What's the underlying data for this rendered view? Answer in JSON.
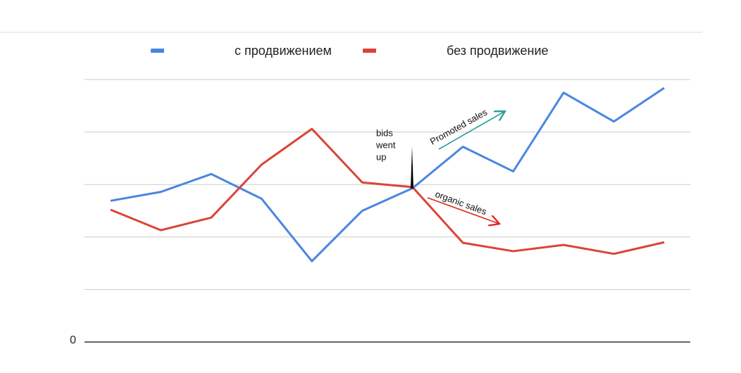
{
  "chart_data": {
    "type": "line",
    "categories": [
      null,
      null,
      null,
      null,
      null,
      null,
      null,
      null,
      null,
      null,
      null,
      null
    ],
    "series": [
      {
        "name": "с продвижением",
        "color": "#4a86e0",
        "values": [
          2.69,
          2.86,
          3.2,
          2.73,
          1.54,
          2.5,
          2.93,
          3.72,
          3.25,
          4.75,
          4.2,
          4.84
        ]
      },
      {
        "name": "без продвижение",
        "color": "#db4437",
        "values": [
          2.52,
          2.13,
          2.37,
          3.38,
          4.06,
          3.04,
          2.95,
          1.89,
          1.73,
          1.85,
          1.68,
          1.9
        ]
      }
    ],
    "ylim": [
      0,
      5
    ],
    "yticks": [
      0
    ],
    "ygrid": [
      0,
      1,
      2,
      3,
      4,
      5
    ],
    "grid": true,
    "legend": "top",
    "annotations": [
      {
        "lines": [
          "bids",
          "went",
          "up"
        ]
      },
      {
        "text": "Promoted sales",
        "color": "#2aa198"
      },
      {
        "text": "organic sales",
        "color": "#e0261b"
      }
    ]
  }
}
